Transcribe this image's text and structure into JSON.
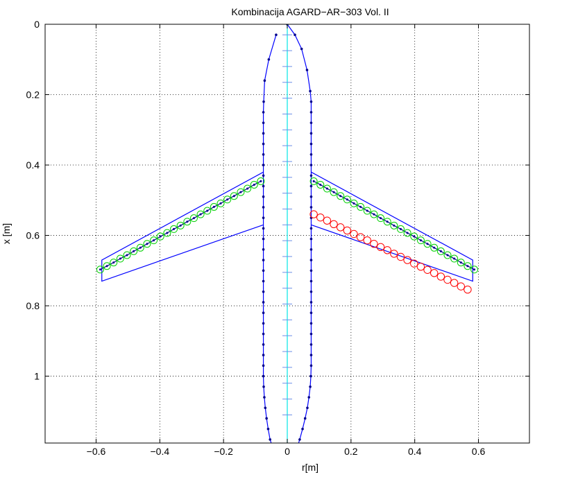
{
  "chart_data": {
    "type": "scatter",
    "title": "Kombinacija AGARD−AR−303 Vol. II",
    "xlabel": "r[m]",
    "ylabel": "x [m]",
    "xlim": [
      -0.76,
      0.76
    ],
    "ylim": [
      0,
      1.19
    ],
    "y_reversed": true,
    "grid": true,
    "xticks": [
      -0.6,
      -0.4,
      -0.2,
      0,
      0.2,
      0.4,
      0.6
    ],
    "xtick_labels": [
      "−0.6",
      "−0.4",
      "−0.2",
      "0",
      "0.2",
      "0.4",
      "0.6"
    ],
    "yticks": [
      0,
      0.2,
      0.4,
      0.6,
      0.8,
      1
    ],
    "ytick_labels": [
      "0",
      "0.2",
      "0.4",
      "0.6",
      "0.8",
      "1"
    ],
    "colors": {
      "outline": "#0000ff",
      "body_nodes": "#00008b",
      "axis_line": "#00e5e5",
      "axis_marks": "#6b8ee6",
      "quarter_chord": "#00d000",
      "control_points": "#ff0000",
      "grid": "#000000"
    },
    "series": [
      {
        "type": "line+markers",
        "x": [
          -0.035,
          -0.058,
          -0.071,
          -0.074,
          -0.075,
          -0.075,
          -0.075,
          -0.075,
          -0.075,
          -0.075,
          -0.075,
          -0.075,
          -0.075,
          -0.075,
          -0.075,
          -0.075,
          -0.075,
          -0.075,
          -0.075,
          -0.075,
          -0.075,
          -0.075,
          -0.075,
          -0.075,
          -0.075,
          -0.075,
          -0.075,
          -0.075,
          -0.075,
          -0.075,
          -0.074,
          -0.072,
          -0.069,
          -0.065,
          -0.06,
          -0.054,
          -0.047,
          -0.039,
          -0.03,
          -0.02,
          -0.01,
          0
        ],
        "y": [
          0.03,
          0.1,
          0.16,
          0.22,
          0.25,
          0.28,
          0.31,
          0.34,
          0.37,
          0.4,
          0.43,
          0.46,
          0.49,
          0.52,
          0.55,
          0.58,
          0.61,
          0.64,
          0.67,
          0.7,
          0.73,
          0.76,
          0.79,
          0.82,
          0.85,
          0.88,
          0.91,
          0.94,
          0.97,
          1.0,
          1.03,
          1.06,
          1.09,
          1.12,
          1.15,
          1.18,
          1.2,
          1.22,
          1.24,
          1.26,
          1.28,
          1.29
        ]
      },
      {
        "type": "line+markers",
        "x": [
          0.0,
          0.024,
          0.045,
          0.062,
          0.072,
          0.075,
          0.075,
          0.075,
          0.075,
          0.075,
          0.075,
          0.075,
          0.075,
          0.075,
          0.075,
          0.075,
          0.075,
          0.075,
          0.075,
          0.075,
          0.075,
          0.075,
          0.075,
          0.075,
          0.075,
          0.075,
          0.075,
          0.075,
          0.075,
          0.075,
          0.075,
          0.074,
          0.072,
          0.068,
          0.063,
          0.056,
          0.048,
          0.039,
          0.029,
          0.02,
          0.01,
          0.0
        ],
        "y": [
          0.0,
          0.03,
          0.07,
          0.13,
          0.19,
          0.22,
          0.25,
          0.28,
          0.31,
          0.34,
          0.37,
          0.4,
          0.43,
          0.46,
          0.49,
          0.52,
          0.55,
          0.58,
          0.61,
          0.64,
          0.67,
          0.7,
          0.73,
          0.76,
          0.79,
          0.82,
          0.85,
          0.88,
          0.91,
          0.94,
          0.97,
          1.0,
          1.03,
          1.06,
          1.09,
          1.12,
          1.15,
          1.18,
          1.21,
          1.24,
          1.27,
          1.29
        ]
      },
      {
        "type": "line",
        "x": [
          -0.075,
          -0.582,
          -0.582,
          -0.075
        ],
        "y": [
          0.42,
          0.67,
          0.73,
          0.57
        ]
      },
      {
        "type": "line",
        "x": [
          0.075,
          0.582,
          0.582,
          0.075
        ],
        "y": [
          0.42,
          0.67,
          0.73,
          0.57
        ]
      },
      {
        "type": "line",
        "x": [
          0,
          0
        ],
        "y": [
          0,
          1.19
        ]
      },
      {
        "type": "markers",
        "x": [
          0,
          0,
          0,
          0,
          0,
          0,
          0,
          0,
          0,
          0,
          0,
          0,
          0,
          0,
          0,
          0,
          0,
          0,
          0,
          0,
          0,
          0,
          0,
          0,
          0
        ],
        "y": [
          0.03,
          0.075,
          0.12,
          0.165,
          0.21,
          0.255,
          0.3,
          0.345,
          0.39,
          0.435,
          0.48,
          0.525,
          0.57,
          0.615,
          0.66,
          0.705,
          0.75,
          0.795,
          0.84,
          0.885,
          0.93,
          0.975,
          1.02,
          1.065,
          1.11
        ]
      },
      {
        "type": "line+markers",
        "x": [
          -0.587,
          -0.566,
          -0.545,
          -0.524,
          -0.503,
          -0.482,
          -0.461,
          -0.44,
          -0.419,
          -0.398,
          -0.377,
          -0.356,
          -0.335,
          -0.314,
          -0.293,
          -0.272,
          -0.251,
          -0.23,
          -0.209,
          -0.188,
          -0.167,
          -0.146,
          -0.125,
          -0.104,
          -0.083
        ],
        "y": [
          0.697,
          0.687,
          0.677,
          0.666,
          0.656,
          0.645,
          0.635,
          0.624,
          0.614,
          0.603,
          0.593,
          0.582,
          0.572,
          0.561,
          0.551,
          0.54,
          0.53,
          0.519,
          0.509,
          0.498,
          0.488,
          0.477,
          0.467,
          0.456,
          0.446
        ]
      },
      {
        "type": "line+markers",
        "x": [
          0.083,
          0.104,
          0.125,
          0.146,
          0.167,
          0.188,
          0.209,
          0.23,
          0.251,
          0.272,
          0.293,
          0.314,
          0.335,
          0.356,
          0.377,
          0.398,
          0.419,
          0.44,
          0.461,
          0.482,
          0.503,
          0.524,
          0.545,
          0.566,
          0.587
        ],
        "y": [
          0.446,
          0.456,
          0.467,
          0.477,
          0.488,
          0.498,
          0.509,
          0.519,
          0.53,
          0.54,
          0.551,
          0.561,
          0.572,
          0.582,
          0.593,
          0.603,
          0.614,
          0.624,
          0.635,
          0.645,
          0.656,
          0.666,
          0.677,
          0.687,
          0.697
        ]
      },
      {
        "type": "markers",
        "x": [
          0.083,
          0.104,
          0.125,
          0.146,
          0.167,
          0.188,
          0.209,
          0.23,
          0.251,
          0.272,
          0.293,
          0.314,
          0.335,
          0.356,
          0.377,
          0.398,
          0.419,
          0.44,
          0.461,
          0.482,
          0.503,
          0.524,
          0.545,
          0.566
        ],
        "y": [
          0.54,
          0.549,
          0.558,
          0.568,
          0.577,
          0.586,
          0.596,
          0.605,
          0.614,
          0.624,
          0.633,
          0.642,
          0.652,
          0.661,
          0.67,
          0.68,
          0.689,
          0.698,
          0.707,
          0.717,
          0.726,
          0.735,
          0.745,
          0.754
        ]
      }
    ]
  }
}
